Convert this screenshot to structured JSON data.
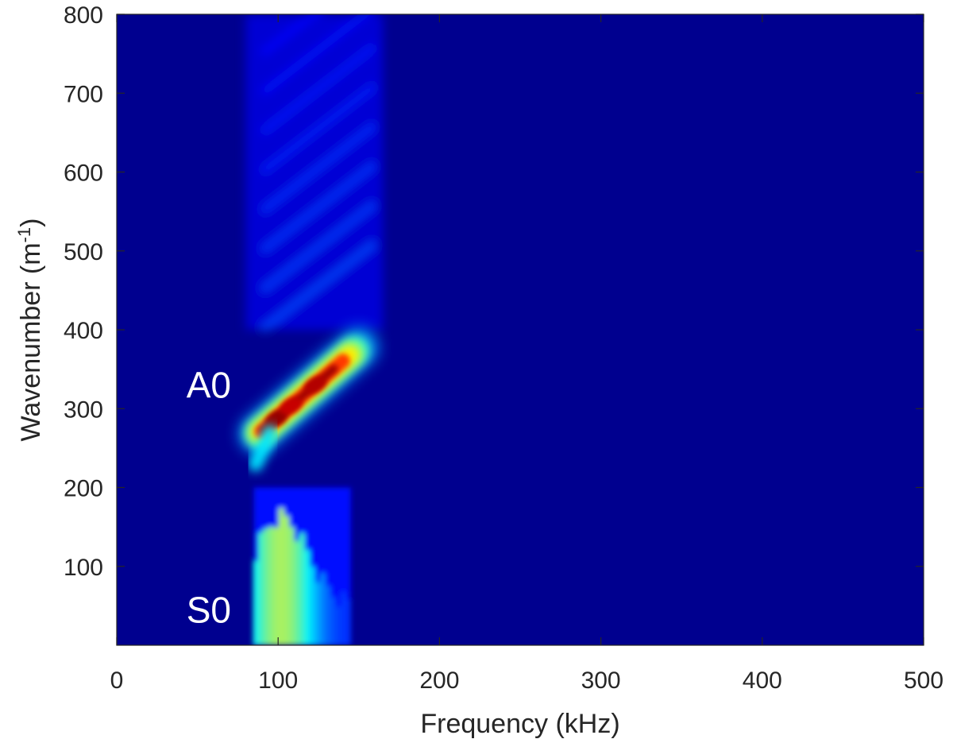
{
  "chart_data": {
    "type": "heatmap",
    "title": "",
    "xlabel": "Frequency (kHz)",
    "ylabel_main": "Wavenumber (m",
    "ylabel_sup": "-1",
    "ylabel_close": ")",
    "xlim": [
      0,
      500
    ],
    "ylim": [
      0,
      800
    ],
    "xticks": [
      0,
      100,
      200,
      300,
      400,
      500
    ],
    "yticks": [
      100,
      200,
      300,
      400,
      500,
      600,
      700,
      800
    ],
    "xtick_labels": [
      "0",
      "100",
      "200",
      "300",
      "400",
      "500"
    ],
    "ytick_labels": [
      "100",
      "200",
      "300",
      "400",
      "500",
      "600",
      "700",
      "800"
    ],
    "colormap": "jet",
    "background_color": "#00008f",
    "grid": false,
    "annotations": [
      {
        "text": "A0",
        "x": 57,
        "y": 330
      },
      {
        "text": "S0",
        "x": 57,
        "y": 45
      }
    ],
    "regions": [
      {
        "name": "A0 mode",
        "freq_range_khz": [
          88,
          150
        ],
        "wavenumber_at_start": 268,
        "wavenumber_at_end": 378,
        "peak_intensity": 1.0
      },
      {
        "name": "S0 mode",
        "freq_range_khz": [
          85,
          145
        ],
        "wavenumber_range": [
          0,
          200
        ],
        "peak_intensity": 0.55
      },
      {
        "name": "upper harmonic stripes",
        "freq_range_khz": [
          80,
          165
        ],
        "wavenumber_range": [
          400,
          800
        ],
        "peak_intensity": 0.2
      }
    ]
  }
}
